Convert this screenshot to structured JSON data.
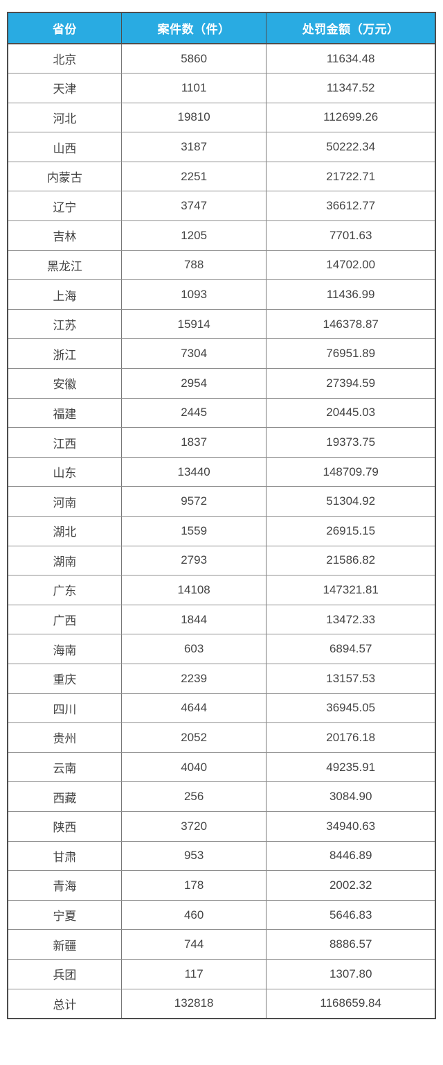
{
  "chart_data": {
    "type": "table",
    "columns": [
      "省份",
      "案件数（件）",
      "处罚金额（万元）"
    ],
    "rows": [
      [
        "北京",
        "5860",
        "11634.48"
      ],
      [
        "天津",
        "1101",
        "11347.52"
      ],
      [
        "河北",
        "19810",
        "112699.26"
      ],
      [
        "山西",
        "3187",
        "50222.34"
      ],
      [
        "内蒙古",
        "2251",
        "21722.71"
      ],
      [
        "辽宁",
        "3747",
        "36612.77"
      ],
      [
        "吉林",
        "1205",
        "7701.63"
      ],
      [
        "黑龙江",
        "788",
        "14702.00"
      ],
      [
        "上海",
        "1093",
        "11436.99"
      ],
      [
        "江苏",
        "15914",
        "146378.87"
      ],
      [
        "浙江",
        "7304",
        "76951.89"
      ],
      [
        "安徽",
        "2954",
        "27394.59"
      ],
      [
        "福建",
        "2445",
        "20445.03"
      ],
      [
        "江西",
        "1837",
        "19373.75"
      ],
      [
        "山东",
        "13440",
        "148709.79"
      ],
      [
        "河南",
        "9572",
        "51304.92"
      ],
      [
        "湖北",
        "1559",
        "26915.15"
      ],
      [
        "湖南",
        "2793",
        "21586.82"
      ],
      [
        "广东",
        "14108",
        "147321.81"
      ],
      [
        "广西",
        "1844",
        "13472.33"
      ],
      [
        "海南",
        "603",
        "6894.57"
      ],
      [
        "重庆",
        "2239",
        "13157.53"
      ],
      [
        "四川",
        "4644",
        "36945.05"
      ],
      [
        "贵州",
        "2052",
        "20176.18"
      ],
      [
        "云南",
        "4040",
        "49235.91"
      ],
      [
        "西藏",
        "256",
        "3084.90"
      ],
      [
        "陕西",
        "3720",
        "34940.63"
      ],
      [
        "甘肃",
        "953",
        "8446.89"
      ],
      [
        "青海",
        "178",
        "2002.32"
      ],
      [
        "宁夏",
        "460",
        "5646.83"
      ],
      [
        "新疆",
        "744",
        "8886.57"
      ],
      [
        "兵团",
        "117",
        "1307.80"
      ],
      [
        "总计",
        "132818",
        "1168659.84"
      ]
    ],
    "total_row_label": "总计",
    "legend_position": "none",
    "grid": true
  },
  "colors": {
    "header_bg": "#29ABE2",
    "header_text": "#FFFFFF",
    "body_text": "#444444",
    "outer_border": "#4D4D4D",
    "row_divider": "#8E8E8E",
    "page_bg": "#FFFFFF"
  }
}
